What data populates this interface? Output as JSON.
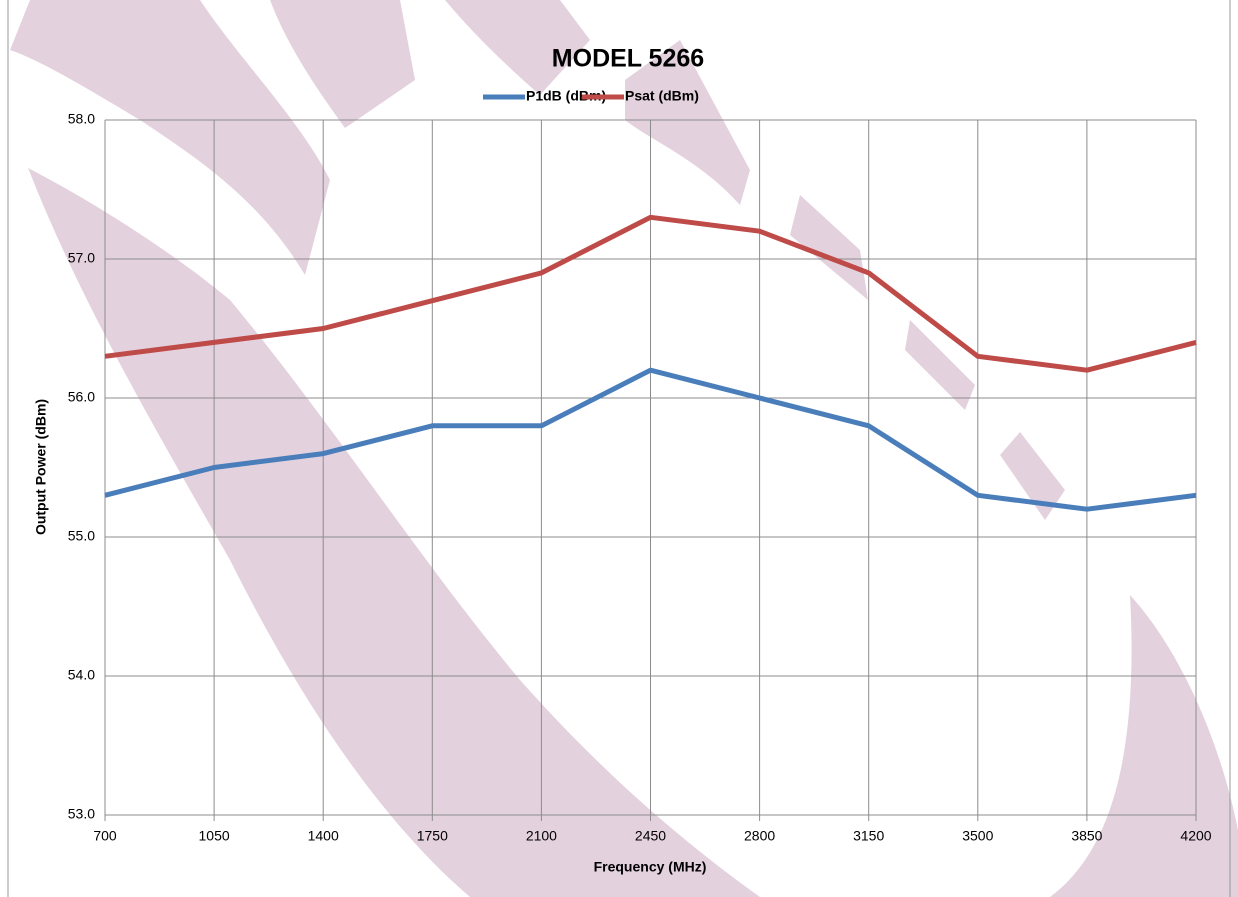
{
  "chart_data": {
    "type": "line",
    "title": "MODEL 5266",
    "x_label": "Frequency (MHz)",
    "y_label": "Output Power (dBm)",
    "x": [
      700,
      1050,
      1400,
      1750,
      2100,
      2450,
      2800,
      3150,
      3500,
      3850,
      4200
    ],
    "series": [
      {
        "name": "P1dB (dBm)",
        "color": "#4a7ebb",
        "values": [
          55.3,
          55.5,
          55.6,
          55.8,
          55.8,
          56.2,
          56.0,
          55.8,
          55.3,
          55.2,
          55.3
        ]
      },
      {
        "name": "Psat (dBm)",
        "color": "#be4b48",
        "values": [
          56.3,
          56.4,
          56.5,
          56.7,
          56.9,
          57.3,
          57.2,
          56.9,
          56.3,
          56.2,
          56.4
        ]
      }
    ],
    "xlim": [
      700,
      4200
    ],
    "xticks": [
      700,
      1050,
      1400,
      1750,
      2100,
      2450,
      2800,
      3150,
      3500,
      3850,
      4200
    ],
    "ylim": [
      53,
      58
    ],
    "yticks": [
      {
        "value": 53,
        "label": "53.0"
      },
      {
        "value": 54,
        "label": "54.0"
      },
      {
        "value": 55,
        "label": "55.0"
      },
      {
        "value": 56,
        "label": "56.0"
      },
      {
        "value": 57,
        "label": "57.0"
      },
      {
        "value": 58,
        "label": "58.0"
      }
    ],
    "grid": true,
    "legend": "top"
  }
}
